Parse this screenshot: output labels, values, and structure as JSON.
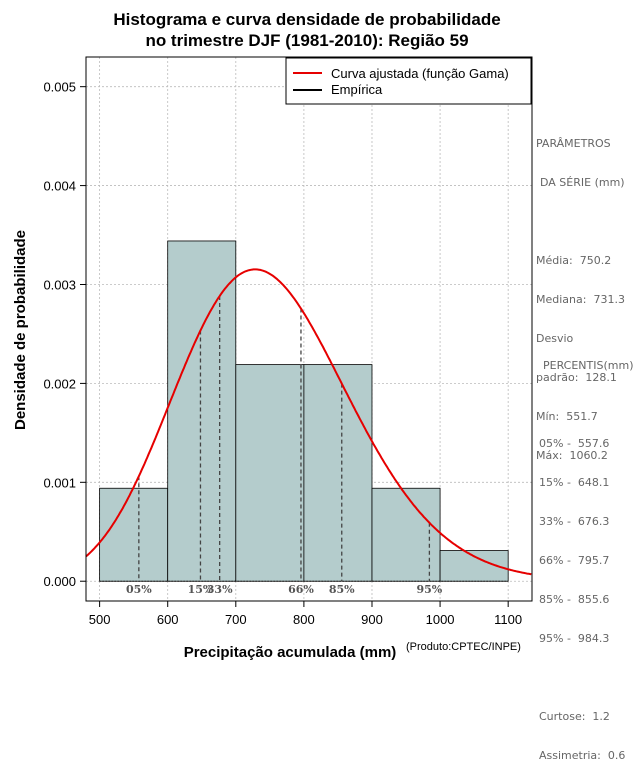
{
  "chart_data": {
    "type": "bar",
    "title_line1": "Histograma e curva densidade de probabilidade",
    "title_line2": "no trimestre DJF (1981-2010): Região 59",
    "xlabel": "Precipitação acumulada (mm)",
    "ylabel": "Densidade de probabilidade",
    "credit": "(Produto:CPTEC/INPE)",
    "xlim": [
      480,
      1135
    ],
    "ylim": [
      -0.0002,
      0.0053
    ],
    "x_ticks": [
      500,
      600,
      700,
      800,
      900,
      1000,
      1100
    ],
    "x_tick_labels": [
      "500",
      "600",
      "700",
      "800",
      "900",
      "1000",
      "1100"
    ],
    "y_ticks": [
      0.0,
      0.001,
      0.002,
      0.003,
      0.004,
      0.005
    ],
    "y_tick_labels": [
      "0.000",
      "0.001",
      "0.002",
      "0.003",
      "0.004",
      "0.005"
    ],
    "grid": true,
    "bins": [
      {
        "start": 500,
        "end": 600,
        "density": 0.00094
      },
      {
        "start": 600,
        "end": 700,
        "density": 0.00344
      },
      {
        "start": 700,
        "end": 800,
        "density": 0.00219
      },
      {
        "start": 800,
        "end": 900,
        "density": 0.00219
      },
      {
        "start": 900,
        "end": 1000,
        "density": 0.00094
      },
      {
        "start": 1000,
        "end": 1100,
        "density": 0.00031
      }
    ],
    "curve": {
      "name": "Curva ajustada (função Gama)",
      "distribution": "gamma",
      "mean": 750.2,
      "sd": 128.1,
      "color": "#e60000"
    },
    "percentile_markers": [
      {
        "label": "05%",
        "value": 557.6
      },
      {
        "label": "15%",
        "value": 648.1
      },
      {
        "label": "33%",
        "value": 676.3
      },
      {
        "label": "66%",
        "value": 795.7
      },
      {
        "label": "85%",
        "value": 855.6
      },
      {
        "label": "95%",
        "value": 984.3
      }
    ],
    "legend": [
      {
        "label": "Curva ajustada (função Gama)",
        "color": "#e60000"
      },
      {
        "label": "Empírica",
        "color": "#000000"
      }
    ],
    "legend_position": "top-right",
    "bar_color": "#b4cccc"
  },
  "params_panel": {
    "heading_line1": "PARÂMETROS",
    "heading_line2": "DA SÉRIE (mm)",
    "media": "Média:  750.2",
    "mediana": "Mediana:  731.3",
    "desvio_line1": "Desvio",
    "desvio_line2": "padrão:  128.1",
    "min": "Mín:  551.7",
    "max": "Máx:  1060.2"
  },
  "percentiles_panel": {
    "heading": "PERCENTIS(mm)",
    "p05": "05% -  557.6",
    "p15": "15% -  648.1",
    "p33": "33% -  676.3",
    "p66": "66% -  795.7",
    "p85": "85% -  855.6",
    "p95": "95% -  984.3",
    "curtose": "Curtose:  1.2",
    "assimetria": "Assimetria:  0.6"
  }
}
